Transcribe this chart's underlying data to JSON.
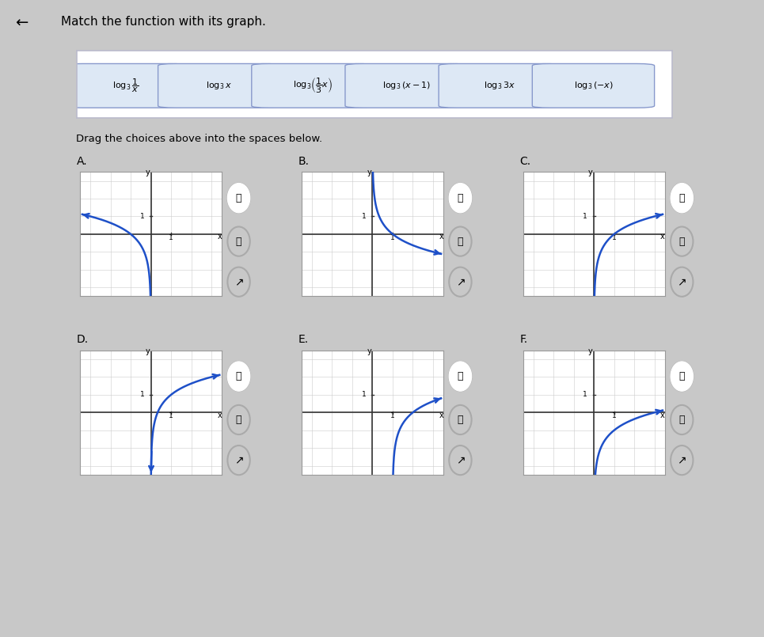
{
  "title": "Match the function with its graph.",
  "subtitle": "Drag the choices above into the spaces below.",
  "choice_texts_latex": [
    "log_3(1/x)",
    "log_3(x)",
    "log_3((1/3)x)",
    "log_3(x-1)",
    "log_3(3x)",
    "log_3(-x)"
  ],
  "panels": [
    {
      "label": "A",
      "func": "neg_log3_x"
    },
    {
      "label": "B",
      "func": "log3_x_decreasing_from_top"
    },
    {
      "label": "C",
      "func": "log3_x_standard"
    },
    {
      "label": "D",
      "func": "log3_3x"
    },
    {
      "label": "E",
      "func": "log3_x_minus1"
    },
    {
      "label": "F",
      "func": "log3_x_div3"
    }
  ],
  "curve_color": "#1e50c8",
  "grid_color": "#bbbbbb",
  "bg_color": "#f0f0f0",
  "panel_bg": "#ffffff",
  "drop_box_color": "#adc8d8",
  "choice_box_bg": "#e8eef8",
  "choice_box_border": "#8899bb",
  "outer_bg": "#c8c8c8"
}
